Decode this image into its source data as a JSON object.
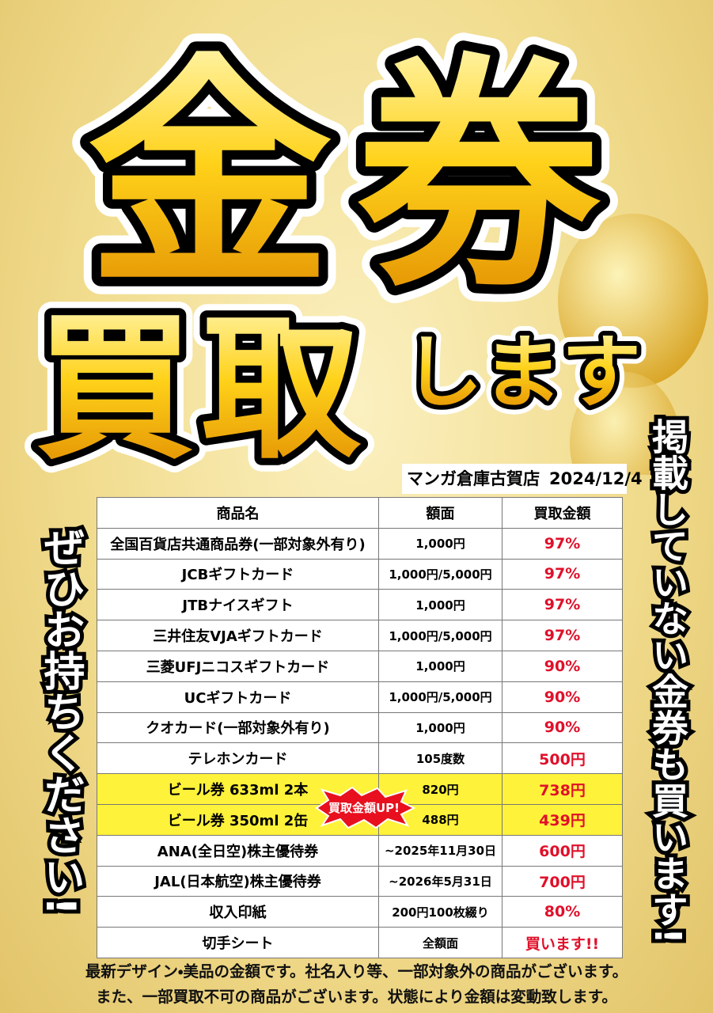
{
  "title": {
    "line1": "金券",
    "line2": "買取",
    "line3": "します"
  },
  "store": {
    "name": "マンガ倉庫古賀店",
    "date": "2024/12/4"
  },
  "side_left": "ぜひお持ちください!",
  "side_right": "掲載していない金券も買います!",
  "badge": "買取金額UP!",
  "table": {
    "header": [
      "商品名",
      "額面",
      "買取金額"
    ],
    "rows": [
      [
        "全国百貨店共通商品券(一部対象外有り)",
        "1,000円",
        "97%"
      ],
      [
        "JCBギフトカード",
        "1,000円/5,000円",
        "97%"
      ],
      [
        "JTBナイスギフト",
        "1,000円",
        "97%"
      ],
      [
        "三井住友VJAギフトカード",
        "1,000円/5,000円",
        "97%"
      ],
      [
        "三菱UFJニコスギフトカード",
        "1,000円",
        "90%"
      ],
      [
        "UCギフトカード",
        "1,000円/5,000円",
        "90%"
      ],
      [
        "クオカード(一部対象外有り)",
        "1,000円",
        "90%"
      ],
      [
        "テレホンカード",
        "105度数",
        "500円"
      ],
      [
        "ビール券 633ml 2本",
        "820円",
        "738円"
      ],
      [
        "ビール券 350ml 2缶",
        "488円",
        "439円"
      ],
      [
        "ANA(全日空)株主優待券",
        "~2025年11月30日",
        "600円"
      ],
      [
        "JAL(日本航空)株主優待券",
        "~2026年5月31日",
        "700円"
      ],
      [
        "収入印紙",
        "200円100枚綴り",
        "80%"
      ],
      [
        "切手シート",
        "全額面",
        "買います!!"
      ]
    ]
  },
  "footer": [
    "最新デザイン・美品の金額です。社名入り等、一部対象外の商品がございます。",
    "また、一部買取不可の商品がございます。状態により金額は変動致します。"
  ]
}
